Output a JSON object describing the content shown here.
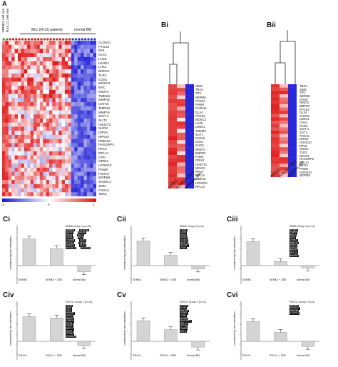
{
  "panel_a": {
    "letter": "A",
    "sample_labels": [
      "SEMK2 cell line",
      "RS4;11 cell line"
    ],
    "group_labels": [
      "MLL t(4;11) patients",
      "normal BM"
    ],
    "genes": [
      "CLDN11",
      "PTGS2",
      "EN1",
      "DLX4",
      "LHX5",
      "LENO1",
      "LHX1",
      "BGDC1",
      "TLR2",
      "CDS1",
      "MOSC2",
      "MYC",
      "NR2F2",
      "TMEM4",
      "MMP16",
      "GATA6",
      "TMEM4",
      "MMP16",
      "SIOT-1",
      "SLIT1",
      "HS3ST2",
      "SHOX",
      "DIP2A",
      "NPAS3",
      "PDE10A",
      "RASGRP2",
      "RPL9",
      "RPL14",
      "CPD",
      "GRIK2",
      "HOXD10",
      "PAWR",
      "FOXF2",
      "WDR68",
      "SH3GL2",
      "SIM2",
      "FOXA1",
      "TBX3"
    ],
    "scale_labels": [
      "-2",
      "0",
      "2"
    ]
  },
  "panel_bi": {
    "letter": "Bi",
    "genes": [
      "SIM2",
      "TBX3",
      "TIF1",
      "WDR68",
      "FOXF2",
      "PAWR",
      "CLDN11",
      "DLX4",
      "PTGS2",
      "MOSC2",
      "LHX5",
      "LENO1",
      "TMEM4",
      "SLIT1",
      "GATA6",
      "CDS1",
      "SHOX",
      "NR2F2",
      "BMPR2",
      "FAM3",
      "GRIK2",
      "HS3ST2",
      "NPAS3",
      "RPL9",
      "RPL14",
      "MMP16",
      "HOXD10",
      "RPL14"
    ],
    "column_labels": [
      "SEMK2",
      "SEMK2 + ZEB",
      "NORMAL BM"
    ]
  },
  "panel_bii": {
    "letter": "Bii",
    "genes": [
      "TBX3",
      "SIM2",
      "TIF1",
      "WDR68",
      "SHOX",
      "NR2F2",
      "BMPR2",
      "PTGS2",
      "DLX4",
      "SHOX2",
      "LENO1",
      "CDS1",
      "GAD2",
      "SIOT-1",
      "SLIT1",
      "FOXA1",
      "GRIK2",
      "HOXD10",
      "RPL9",
      "GRIK2",
      "TLR2",
      "NPAS3",
      "RASGRP2",
      "RPL14",
      "DIP2A",
      "PAWR",
      "HOXD10",
      "WDR68"
    ],
    "column_labels": [
      "RS4;11",
      "RS4;11 + ZEB",
      "NORMAL BM"
    ]
  },
  "bar_panels": [
    {
      "letter": "Ci",
      "title": "SEMK Group 1 (n=15)",
      "ylabel": "normalized log ratio methylation",
      "categories": [
        "SEMK2",
        "SEMK2 + ZEB",
        "Normal BM"
      ],
      "genes": [
        [
          "SEMA3",
          "CLDN11"
        ],
        [
          "SOX3",
          "GATA6"
        ],
        [
          "PAX3",
          "SLIT1"
        ],
        [
          "CDX1",
          "WT1"
        ],
        [
          "TMEM4",
          "DLX4"
        ],
        [
          "PTGS2",
          "SIM2"
        ],
        [
          "HAND2",
          "SLIT2"
        ],
        [
          "HOXD10",
          "HOXD11"
        ]
      ]
    },
    {
      "letter": "Cii",
      "title": "SEMK Group 2 (n=8)",
      "ylabel": "normalized log ratio methylation",
      "categories": [
        "SEMK2",
        "SEMK2 + ZEB",
        "Normal BM"
      ],
      "genes": [
        [
          "CDX2"
        ],
        [
          "LHX5"
        ],
        [
          "PAX2"
        ],
        [
          "SOX3"
        ],
        [
          "GATA4"
        ],
        [
          "NR2F2"
        ],
        [
          "HOXA9"
        ],
        [
          "TBX3"
        ]
      ]
    },
    {
      "letter": "Ciii",
      "title": "SEMK Group 3 (n=11)",
      "ylabel": "normalized log ratio methylation",
      "categories": [
        "SEMK2",
        "SEMK2 + ZEB",
        "Normal BM"
      ],
      "genes": [
        [
          "FOXF2"
        ],
        [
          "PAWR"
        ],
        [
          "RPL9"
        ],
        [
          "CPD"
        ],
        [
          "GRIK2"
        ],
        [
          "MMP16"
        ],
        [
          "SHOX"
        ],
        [
          "DIP2A"
        ],
        [
          "NPAS3"
        ],
        [
          "RPL14"
        ],
        [
          "BMPR2"
        ]
      ]
    },
    {
      "letter": "Civ",
      "title": "RS4;11 Group 1 (n=13)",
      "ylabel": "normalized log ratio methylation",
      "categories": [
        "RS4;11",
        "RS4;11 + ZEB",
        "Normal BM"
      ],
      "genes": [
        [
          "TBX3"
        ],
        [
          "SIM2"
        ],
        [
          "TIF1"
        ],
        [
          "WDR68"
        ],
        [
          "SHOX"
        ],
        [
          "NR2F2"
        ],
        [
          "LENO1"
        ],
        [
          "CDS1"
        ],
        [
          "GAD2"
        ],
        [
          "SIOT-1"
        ],
        [
          "SLIT1"
        ],
        [
          "FOXA1"
        ],
        [
          "HOXD10"
        ]
      ]
    },
    {
      "letter": "Cv",
      "title": "RS4;11 Group 2 (n=11)",
      "ylabel": "normalized log ratio methylation",
      "categories": [
        "RS4;11",
        "RS4;11 + ZEB",
        "Normal BM"
      ],
      "genes": [
        [
          "PTGS2"
        ],
        [
          "DLX4"
        ],
        [
          "SHOX2"
        ],
        [
          "GRIK2"
        ],
        [
          "TLR2"
        ],
        [
          "NPAS3"
        ],
        [
          "RASGRP2"
        ],
        [
          "RPL14"
        ],
        [
          "DIP2A"
        ],
        [
          "PAWR"
        ],
        [
          "RPL9"
        ]
      ]
    },
    {
      "letter": "Cvi",
      "title": "RS4;11 Group 3 (n=4)",
      "ylabel": "normalized log ratio methylation",
      "categories": [
        "RS4;11",
        "RS4;11 + ZEB",
        "Normal BM"
      ],
      "genes": [
        [
          "BMPR2"
        ],
        [
          "HOXD10"
        ],
        [
          "WDR68"
        ],
        [
          "CLDN11"
        ]
      ]
    }
  ]
}
